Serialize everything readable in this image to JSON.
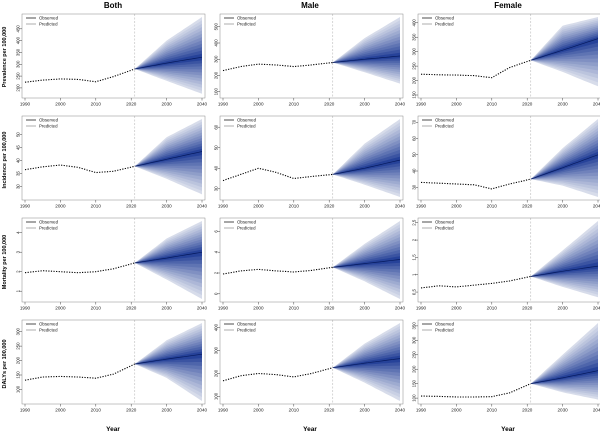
{
  "columns": [
    "Both",
    "Male",
    "Female"
  ],
  "row_ylabels": [
    "Prevalence per 100,000",
    "Incidence per 100,000",
    "Mortality per 100,000",
    "DALYs per 100,000"
  ],
  "xlabel": "Year",
  "legend": {
    "observed": "Observed",
    "predicted": "Predicted"
  },
  "colors": {
    "observed": "#000000",
    "fan_core": "#0a2a8c",
    "fan_outer": "#d7dcea",
    "vline": "#bbbbbb",
    "axis": "#444444"
  },
  "x_ticks": [
    1990,
    2000,
    2010,
    2020,
    2030,
    2040
  ],
  "observed_end_year": 2021,
  "prediction_end_year": 2040,
  "chart_data": [
    {
      "type": "line",
      "row": "Prevalence per 100,000",
      "column": "Both",
      "yticks": [
        200,
        250,
        300,
        350,
        400,
        450
      ],
      "ylim": [
        170,
        500
      ],
      "observed": {
        "x": [
          1990,
          1995,
          2000,
          2005,
          2010,
          2015,
          2021
        ],
        "y": [
          224,
          233,
          238,
          236,
          226,
          248,
          280
        ]
      },
      "predicted": {
        "x": [
          2021,
          2030,
          2040
        ],
        "median": [
          280,
          305,
          330
        ],
        "lower": [
          280,
          230,
          175
        ],
        "upper": [
          280,
          400,
          500
        ]
      }
    },
    {
      "type": "line",
      "row": "Prevalence per 100,000",
      "column": "Male",
      "yticks": [
        100,
        200,
        300,
        400,
        500
      ],
      "ylim": [
        80,
        560
      ],
      "observed": {
        "x": [
          1990,
          1995,
          2000,
          2005,
          2010,
          2015,
          2021
        ],
        "y": [
          230,
          255,
          270,
          265,
          255,
          265,
          280
        ]
      },
      "predicted": {
        "x": [
          2021,
          2030,
          2040
        ],
        "median": [
          280,
          300,
          320
        ],
        "lower": [
          280,
          220,
          150
        ],
        "upper": [
          280,
          430,
          560
        ]
      }
    },
    {
      "type": "line",
      "row": "Prevalence per 100,000",
      "column": "Female",
      "yticks": [
        150,
        200,
        250,
        300,
        350,
        400
      ],
      "ylim": [
        150,
        420
      ],
      "observed": {
        "x": [
          1990,
          1995,
          2000,
          2005,
          2010,
          2015,
          2021
        ],
        "y": [
          222,
          220,
          219,
          217,
          210,
          245,
          270
        ]
      },
      "predicted": {
        "x": [
          2021,
          2030,
          2040
        ],
        "median": [
          270,
          305,
          345
        ],
        "lower": [
          270,
          230,
          180
        ],
        "upper": [
          270,
          390,
          420
        ]
      }
    },
    {
      "type": "line",
      "row": "Incidence per 100,000",
      "column": "Both",
      "yticks": [
        30,
        35,
        40,
        45,
        50
      ],
      "ylim": [
        26,
        56
      ],
      "observed": {
        "x": [
          1990,
          1995,
          2000,
          2005,
          2010,
          2015,
          2021
        ],
        "y": [
          36.5,
          37.6,
          38.3,
          37.4,
          35.4,
          35.9,
          37.8
        ]
      },
      "predicted": {
        "x": [
          2021,
          2030,
          2040
        ],
        "median": [
          37.8,
          40.5,
          43.5
        ],
        "lower": [
          37.8,
          33,
          27
        ],
        "upper": [
          37.8,
          49,
          56
        ]
      }
    },
    {
      "type": "line",
      "row": "Incidence per 100,000",
      "column": "Male",
      "yticks": [
        30,
        40,
        50,
        60
      ],
      "ylim": [
        26,
        64
      ],
      "observed": {
        "x": [
          1990,
          1995,
          2000,
          2005,
          2010,
          2015,
          2021
        ],
        "y": [
          34,
          37,
          40,
          38,
          35,
          36,
          37
        ]
      },
      "predicted": {
        "x": [
          2021,
          2030,
          2040
        ],
        "median": [
          37,
          40,
          44
        ],
        "lower": [
          37,
          32,
          26
        ],
        "upper": [
          37,
          52,
          64
        ]
      }
    },
    {
      "type": "line",
      "row": "Incidence per 100,000",
      "column": "Female",
      "yticks": [
        30,
        40,
        50,
        60,
        70
      ],
      "ylim": [
        24,
        72
      ],
      "observed": {
        "x": [
          1990,
          1995,
          2000,
          2005,
          2010,
          2015,
          2021
        ],
        "y": [
          33,
          32.5,
          32,
          31.5,
          29,
          32,
          35
        ]
      },
      "predicted": {
        "x": [
          2021,
          2030,
          2040
        ],
        "median": [
          35,
          42,
          50
        ],
        "lower": [
          35,
          31,
          24
        ],
        "upper": [
          35,
          54,
          72
        ]
      }
    },
    {
      "type": "line",
      "row": "Mortality per 100,000",
      "column": "Both",
      "yticks": [
        1,
        2,
        3,
        4
      ],
      "ylim": [
        0.6,
        4.6
      ],
      "observed": {
        "x": [
          1990,
          1995,
          2000,
          2005,
          2010,
          2015,
          2021
        ],
        "y": [
          1.95,
          2.05,
          2.0,
          1.95,
          2.0,
          2.15,
          2.45
        ]
      },
      "predicted": {
        "x": [
          2021,
          2030,
          2040
        ],
        "median": [
          2.45,
          2.7,
          3.0
        ],
        "lower": [
          2.45,
          1.6,
          0.6
        ],
        "upper": [
          2.45,
          3.7,
          4.6
        ]
      }
    },
    {
      "type": "line",
      "row": "Mortality per 100,000",
      "column": "Male",
      "yticks": [
        0,
        2,
        4,
        6
      ],
      "ylim": [
        -0.5,
        7
      ],
      "observed": {
        "x": [
          1990,
          1995,
          2000,
          2005,
          2010,
          2015,
          2021
        ],
        "y": [
          1.9,
          2.2,
          2.35,
          2.2,
          2.1,
          2.25,
          2.55
        ]
      },
      "predicted": {
        "x": [
          2021,
          2030,
          2040
        ],
        "median": [
          2.55,
          2.9,
          3.3
        ],
        "lower": [
          2.55,
          1.2,
          -0.5
        ],
        "upper": [
          2.55,
          4.8,
          7.0
        ]
      }
    },
    {
      "type": "line",
      "row": "Mortality per 100,000",
      "column": "Female",
      "yticks": [
        0.5,
        1.0,
        1.5,
        2.0,
        2.5
      ],
      "ylim": [
        0.3,
        2.55
      ],
      "observed": {
        "x": [
          1990,
          1995,
          2000,
          2005,
          2010,
          2015,
          2021
        ],
        "y": [
          0.62,
          0.68,
          0.65,
          0.7,
          0.75,
          0.82,
          0.95
        ]
      },
      "predicted": {
        "x": [
          2021,
          2030,
          2040
        ],
        "median": [
          0.95,
          1.1,
          1.25
        ],
        "lower": [
          0.95,
          0.65,
          0.35
        ],
        "upper": [
          0.95,
          1.7,
          2.55
        ]
      }
    },
    {
      "type": "line",
      "row": "DALYs per 100,000",
      "column": "Both",
      "yticks": [
        100,
        150,
        200,
        250,
        300
      ],
      "ylim": [
        60,
        330
      ],
      "observed": {
        "x": [
          1990,
          1995,
          2000,
          2005,
          2010,
          2015,
          2021
        ],
        "y": [
          132,
          143,
          145,
          143,
          139,
          153,
          188
        ]
      },
      "predicted": {
        "x": [
          2021,
          2030,
          2040
        ],
        "median": [
          188,
          205,
          222
        ],
        "lower": [
          188,
          140,
          60
        ],
        "upper": [
          188,
          270,
          330
        ]
      }
    },
    {
      "type": "line",
      "row": "DALYs per 100,000",
      "column": "Male",
      "yticks": [
        100,
        200,
        300,
        400
      ],
      "ylim": [
        80,
        420
      ],
      "observed": {
        "x": [
          1990,
          1995,
          2000,
          2005,
          2010,
          2015,
          2021
        ],
        "y": [
          168,
          190,
          200,
          195,
          185,
          200,
          225
        ]
      },
      "predicted": {
        "x": [
          2021,
          2030,
          2040
        ],
        "median": [
          225,
          245,
          265
        ],
        "lower": [
          225,
          160,
          80
        ],
        "upper": [
          225,
          330,
          420
        ]
      }
    },
    {
      "type": "line",
      "row": "DALYs per 100,000",
      "column": "Female",
      "yticks": [
        100,
        150,
        200,
        250,
        300,
        350
      ],
      "ylim": [
        90,
        360
      ],
      "observed": {
        "x": [
          1990,
          1995,
          2000,
          2005,
          2010,
          2015,
          2021
        ],
        "y": [
          107,
          106,
          104,
          104,
          105,
          118,
          150
        ]
      },
      "predicted": {
        "x": [
          2021,
          2030,
          2040
        ],
        "median": [
          150,
          170,
          195
        ],
        "lower": [
          150,
          120,
          95
        ],
        "upper": [
          150,
          250,
          360
        ]
      }
    }
  ]
}
